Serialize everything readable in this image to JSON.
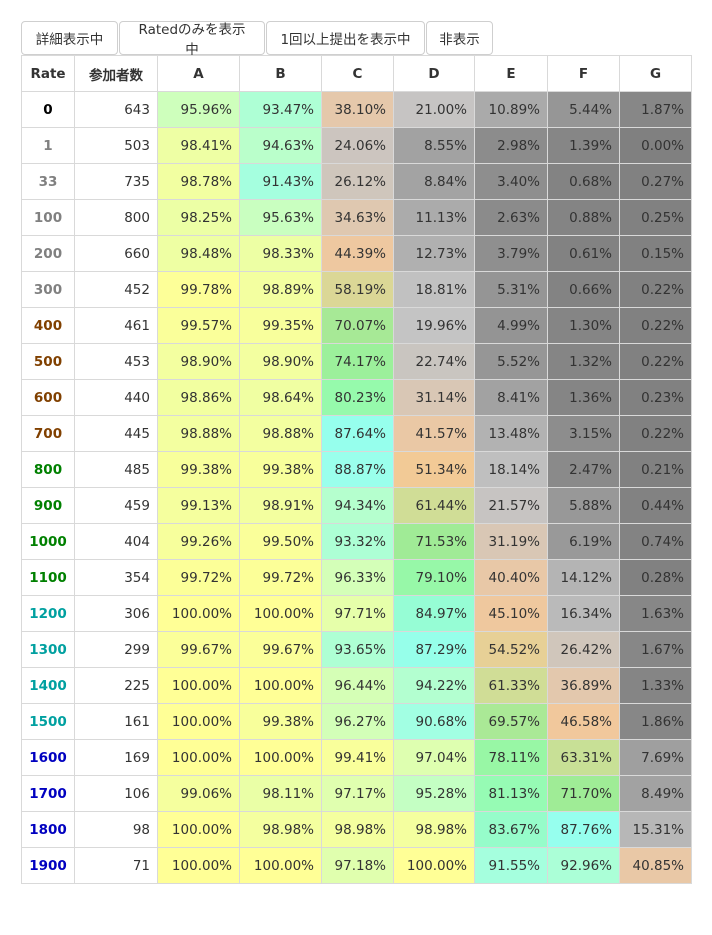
{
  "toolbar": {
    "buttons": [
      "詳細表示中",
      "Ratedのみを表示中",
      "1回以上提出を表示中",
      "非表示"
    ]
  },
  "table": {
    "headers": [
      "Rate",
      "参加者数",
      "A",
      "B",
      "C",
      "D",
      "E",
      "F",
      "G"
    ],
    "rows": [
      {
        "rate": "0",
        "count": "643",
        "values": [
          "95.96%",
          "93.47%",
          "38.10%",
          "21.00%",
          "10.89%",
          "5.44%",
          "1.87%"
        ]
      },
      {
        "rate": "1",
        "count": "503",
        "values": [
          "98.41%",
          "94.63%",
          "24.06%",
          "8.55%",
          "2.98%",
          "1.39%",
          "0.00%"
        ]
      },
      {
        "rate": "33",
        "count": "735",
        "values": [
          "98.78%",
          "91.43%",
          "26.12%",
          "8.84%",
          "3.40%",
          "0.68%",
          "0.27%"
        ]
      },
      {
        "rate": "100",
        "count": "800",
        "values": [
          "98.25%",
          "95.63%",
          "34.63%",
          "11.13%",
          "2.63%",
          "0.88%",
          "0.25%"
        ]
      },
      {
        "rate": "200",
        "count": "660",
        "values": [
          "98.48%",
          "98.33%",
          "44.39%",
          "12.73%",
          "3.79%",
          "0.61%",
          "0.15%"
        ]
      },
      {
        "rate": "300",
        "count": "452",
        "values": [
          "99.78%",
          "98.89%",
          "58.19%",
          "18.81%",
          "5.31%",
          "0.66%",
          "0.22%"
        ]
      },
      {
        "rate": "400",
        "count": "461",
        "values": [
          "99.57%",
          "99.35%",
          "70.07%",
          "19.96%",
          "4.99%",
          "1.30%",
          "0.22%"
        ]
      },
      {
        "rate": "500",
        "count": "453",
        "values": [
          "98.90%",
          "98.90%",
          "74.17%",
          "22.74%",
          "5.52%",
          "1.32%",
          "0.22%"
        ]
      },
      {
        "rate": "600",
        "count": "440",
        "values": [
          "98.86%",
          "98.64%",
          "80.23%",
          "31.14%",
          "8.41%",
          "1.36%",
          "0.23%"
        ]
      },
      {
        "rate": "700",
        "count": "445",
        "values": [
          "98.88%",
          "98.88%",
          "87.64%",
          "41.57%",
          "13.48%",
          "3.15%",
          "0.22%"
        ]
      },
      {
        "rate": "800",
        "count": "485",
        "values": [
          "99.38%",
          "99.38%",
          "88.87%",
          "51.34%",
          "18.14%",
          "2.47%",
          "0.21%"
        ]
      },
      {
        "rate": "900",
        "count": "459",
        "values": [
          "99.13%",
          "98.91%",
          "94.34%",
          "61.44%",
          "21.57%",
          "5.88%",
          "0.44%"
        ]
      },
      {
        "rate": "1000",
        "count": "404",
        "values": [
          "99.26%",
          "99.50%",
          "93.32%",
          "71.53%",
          "31.19%",
          "6.19%",
          "0.74%"
        ]
      },
      {
        "rate": "1100",
        "count": "354",
        "values": [
          "99.72%",
          "99.72%",
          "96.33%",
          "79.10%",
          "40.40%",
          "14.12%",
          "0.28%"
        ]
      },
      {
        "rate": "1200",
        "count": "306",
        "values": [
          "100.00%",
          "100.00%",
          "97.71%",
          "84.97%",
          "45.10%",
          "16.34%",
          "1.63%"
        ]
      },
      {
        "rate": "1300",
        "count": "299",
        "values": [
          "99.67%",
          "99.67%",
          "93.65%",
          "87.29%",
          "54.52%",
          "26.42%",
          "1.67%"
        ]
      },
      {
        "rate": "1400",
        "count": "225",
        "values": [
          "100.00%",
          "100.00%",
          "96.44%",
          "94.22%",
          "61.33%",
          "36.89%",
          "1.33%"
        ]
      },
      {
        "rate": "1500",
        "count": "161",
        "values": [
          "100.00%",
          "99.38%",
          "96.27%",
          "90.68%",
          "69.57%",
          "46.58%",
          "1.86%"
        ]
      },
      {
        "rate": "1600",
        "count": "169",
        "values": [
          "100.00%",
          "100.00%",
          "99.41%",
          "97.04%",
          "78.11%",
          "63.31%",
          "7.69%"
        ]
      },
      {
        "rate": "1700",
        "count": "106",
        "values": [
          "99.06%",
          "98.11%",
          "97.17%",
          "95.28%",
          "81.13%",
          "71.70%",
          "8.49%"
        ]
      },
      {
        "rate": "1800",
        "count": "98",
        "values": [
          "100.00%",
          "98.98%",
          "98.98%",
          "98.98%",
          "83.67%",
          "87.76%",
          "15.31%"
        ]
      },
      {
        "rate": "1900",
        "count": "71",
        "values": [
          "100.00%",
          "100.00%",
          "97.18%",
          "100.00%",
          "91.55%",
          "92.96%",
          "40.85%"
        ]
      }
    ]
  },
  "colors": {
    "rate_gray": "#808080",
    "rate_brown": "#804000",
    "rate_green": "#008000",
    "rate_cyan": "#00a0a0",
    "rate_blue": "#0000c0",
    "rate_zero": "#000000"
  }
}
